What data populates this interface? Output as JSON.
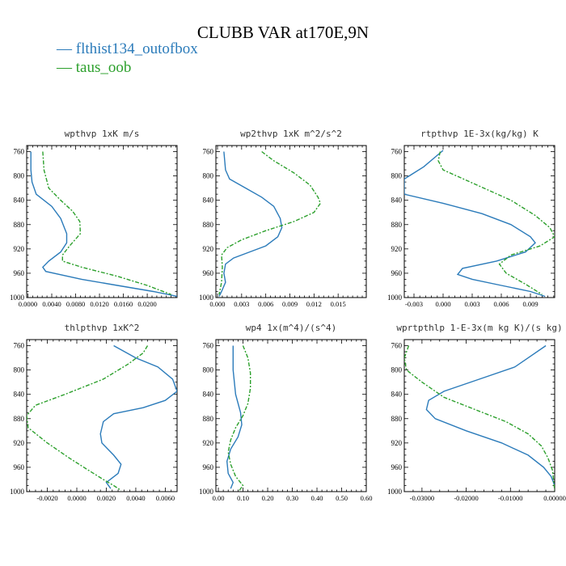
{
  "figure": {
    "title": "CLUBB VAR at170E,9N",
    "legend": [
      {
        "label": "flthist134_outofbox",
        "color": "#2b7bba"
      },
      {
        "label": "taus_oob",
        "color": "#2ca02c"
      }
    ]
  },
  "chart_data": [
    {
      "type": "line",
      "title": "wpthvp 1xK m/s",
      "xlim": [
        -0.0002,
        0.025
      ],
      "xticks": [
        0.0,
        0.004,
        0.008,
        0.012,
        0.016,
        0.02
      ],
      "xtick_labels": [
        "0.0000",
        "0.0040",
        "0.0080",
        "0.0120",
        "0.0160",
        "0.0200"
      ],
      "ylim": [
        1000,
        750
      ],
      "yticks": [
        760,
        800,
        840,
        880,
        920,
        960,
        1000
      ],
      "series": [
        {
          "name": "flthist134_outofbox",
          "points": [
            [
              0.0005,
              760
            ],
            [
              0.0005,
              790
            ],
            [
              0.0007,
              810
            ],
            [
              0.0014,
              830
            ],
            [
              0.004,
              850
            ],
            [
              0.0055,
              870
            ],
            [
              0.0065,
              895
            ],
            [
              0.0065,
              910
            ],
            [
              0.0055,
              925
            ],
            [
              0.0035,
              940
            ],
            [
              0.0025,
              950
            ],
            [
              0.003,
              957
            ],
            [
              0.009,
              970
            ],
            [
              0.015,
              980
            ],
            [
              0.021,
              990
            ],
            [
              0.025,
              998
            ]
          ]
        },
        {
          "name": "taus_oob",
          "points": [
            [
              0.0025,
              760
            ],
            [
              0.0027,
              790
            ],
            [
              0.0035,
              820
            ],
            [
              0.0055,
              840
            ],
            [
              0.0075,
              858
            ],
            [
              0.0087,
              875
            ],
            [
              0.0088,
              895
            ],
            [
              0.007,
              915
            ],
            [
              0.0058,
              930
            ],
            [
              0.0058,
              940
            ],
            [
              0.009,
              950
            ],
            [
              0.015,
              965
            ],
            [
              0.02,
              980
            ],
            [
              0.024,
              995
            ]
          ]
        }
      ]
    },
    {
      "type": "line",
      "title": "wp2thvp 1xK m^2/s^2",
      "xlim": [
        -0.0002,
        0.0185
      ],
      "xticks": [
        0.0,
        0.003,
        0.006,
        0.009,
        0.012,
        0.015
      ],
      "xtick_labels": [
        "0.000",
        "0.003",
        "0.006",
        "0.009",
        "0.012",
        "0.015"
      ],
      "ylim": [
        1000,
        750
      ],
      "yticks": [
        760,
        800,
        840,
        880,
        920,
        960,
        1000
      ],
      "series": [
        {
          "name": "flthist134_outofbox",
          "points": [
            [
              0.0008,
              760
            ],
            [
              0.001,
              790
            ],
            [
              0.0015,
              805
            ],
            [
              0.0035,
              820
            ],
            [
              0.0055,
              835
            ],
            [
              0.007,
              850
            ],
            [
              0.0078,
              870
            ],
            [
              0.008,
              885
            ],
            [
              0.0075,
              900
            ],
            [
              0.006,
              915
            ],
            [
              0.004,
              925
            ],
            [
              0.002,
              935
            ],
            [
              0.001,
              945
            ],
            [
              0.0008,
              960
            ],
            [
              0.001,
              975
            ],
            [
              0.0005,
              990
            ],
            [
              0.0002,
              998
            ]
          ]
        },
        {
          "name": "taus_oob",
          "points": [
            [
              0.0055,
              760
            ],
            [
              0.007,
              775
            ],
            [
              0.0095,
              795
            ],
            [
              0.0115,
              815
            ],
            [
              0.0125,
              835
            ],
            [
              0.0128,
              845
            ],
            [
              0.012,
              860
            ],
            [
              0.0095,
              875
            ],
            [
              0.006,
              890
            ],
            [
              0.003,
              905
            ],
            [
              0.0012,
              918
            ],
            [
              0.0005,
              930
            ],
            [
              0.0006,
              950
            ],
            [
              0.0005,
              975
            ],
            [
              0.0002,
              995
            ]
          ]
        }
      ]
    },
    {
      "type": "line",
      "title": "rtpthvp 1E-3x(kg/kg) K",
      "xlim": [
        -0.004,
        0.0115
      ],
      "xticks": [
        -0.003,
        0.0,
        0.003,
        0.006,
        0.009
      ],
      "xtick_labels": [
        "-0.003",
        "0.000",
        "0.003",
        "0.006",
        "0.009"
      ],
      "ylim": [
        1000,
        750
      ],
      "yticks": [
        760,
        800,
        840,
        880,
        920,
        960,
        1000
      ],
      "series": [
        {
          "name": "flthist134_outofbox",
          "points": [
            [
              0.0,
              758
            ],
            [
              -0.002,
              785
            ],
            [
              -0.004,
              805
            ],
            [
              -0.004,
              830
            ],
            [
              0.0,
              845
            ],
            [
              0.004,
              862
            ],
            [
              0.007,
              880
            ],
            [
              0.009,
              900
            ],
            [
              0.0095,
              910
            ],
            [
              0.0085,
              925
            ],
            [
              0.0055,
              940
            ],
            [
              0.002,
              952
            ],
            [
              0.0015,
              962
            ],
            [
              0.003,
              970
            ],
            [
              0.006,
              980
            ],
            [
              0.009,
              990
            ],
            [
              0.0105,
              998
            ]
          ]
        },
        {
          "name": "taus_oob",
          "points": [
            [
              -0.0003,
              760
            ],
            [
              -0.0005,
              775
            ],
            [
              0.0,
              790
            ],
            [
              0.0035,
              815
            ],
            [
              0.007,
              840
            ],
            [
              0.0095,
              865
            ],
            [
              0.011,
              885
            ],
            [
              0.0115,
              900
            ],
            [
              0.01,
              915
            ],
            [
              0.007,
              930
            ],
            [
              0.0058,
              945
            ],
            [
              0.0065,
              960
            ],
            [
              0.0085,
              978
            ],
            [
              0.0102,
              995
            ]
          ]
        }
      ]
    },
    {
      "type": "line",
      "title": "thlpthvp 1xK^2",
      "xlim": [
        -0.0034,
        0.0068
      ],
      "xticks": [
        -0.002,
        0.0,
        0.002,
        0.004,
        0.006
      ],
      "xtick_labels": [
        "-0.0020",
        "0.0000",
        "0.0020",
        "0.0040",
        "0.0060"
      ],
      "ylim": [
        1000,
        750
      ],
      "yticks": [
        760,
        800,
        840,
        880,
        920,
        960,
        1000
      ],
      "series": [
        {
          "name": "flthist134_outofbox",
          "points": [
            [
              0.0025,
              760
            ],
            [
              0.004,
              780
            ],
            [
              0.0055,
              795
            ],
            [
              0.0065,
              815
            ],
            [
              0.0068,
              835
            ],
            [
              0.006,
              850
            ],
            [
              0.0045,
              862
            ],
            [
              0.0025,
              872
            ],
            [
              0.0018,
              885
            ],
            [
              0.0016,
              905
            ],
            [
              0.0017,
              920
            ],
            [
              0.0025,
              940
            ],
            [
              0.003,
              955
            ],
            [
              0.0028,
              970
            ],
            [
              0.002,
              985
            ],
            [
              0.0023,
              995
            ]
          ]
        },
        {
          "name": "taus_oob",
          "points": [
            [
              0.0048,
              760
            ],
            [
              0.0045,
              772
            ],
            [
              0.0035,
              790
            ],
            [
              0.0018,
              815
            ],
            [
              -0.0008,
              840
            ],
            [
              -0.0028,
              858
            ],
            [
              -0.0034,
              875
            ],
            [
              -0.0033,
              895
            ],
            [
              -0.002,
              920
            ],
            [
              -0.0005,
              945
            ],
            [
              0.0008,
              965
            ],
            [
              0.0018,
              980
            ],
            [
              0.0025,
              990
            ],
            [
              0.003,
              998
            ]
          ]
        }
      ]
    },
    {
      "type": "line",
      "title": "wp4 1x(m^4)/(s^4)",
      "xlim": [
        -0.01,
        0.6
      ],
      "xticks": [
        0.0,
        0.1,
        0.2,
        0.3,
        0.4,
        0.5,
        0.6
      ],
      "xtick_labels": [
        "0.00",
        "0.10",
        "0.20",
        "0.30",
        "0.40",
        "0.50",
        "0.60"
      ],
      "ylim": [
        1000,
        750
      ],
      "yticks": [
        760,
        800,
        840,
        880,
        920,
        960,
        1000
      ],
      "series": [
        {
          "name": "flthist134_outofbox",
          "points": [
            [
              0.06,
              760
            ],
            [
              0.06,
              800
            ],
            [
              0.07,
              840
            ],
            [
              0.09,
              870
            ],
            [
              0.095,
              890
            ],
            [
              0.08,
              910
            ],
            [
              0.05,
              930
            ],
            [
              0.035,
              950
            ],
            [
              0.04,
              970
            ],
            [
              0.06,
              985
            ],
            [
              0.05,
              995
            ]
          ]
        },
        {
          "name": "taus_oob",
          "points": [
            [
              0.1,
              760
            ],
            [
              0.12,
              780
            ],
            [
              0.13,
              805
            ],
            [
              0.13,
              830
            ],
            [
              0.12,
              855
            ],
            [
              0.1,
              875
            ],
            [
              0.07,
              895
            ],
            [
              0.05,
              915
            ],
            [
              0.04,
              935
            ],
            [
              0.05,
              955
            ],
            [
              0.07,
              975
            ],
            [
              0.1,
              990
            ],
            [
              0.085,
              998
            ]
          ]
        }
      ]
    },
    {
      "type": "line",
      "title": "wprtpthlp 1-E-3x(m kg K)/(s kg)",
      "xlim": [
        -0.034,
        0.0
      ],
      "xticks": [
        -0.03,
        -0.02,
        -0.01,
        0.0
      ],
      "xtick_labels": [
        "-0.03000",
        "-0.02000",
        "-0.01000",
        "0.00000"
      ],
      "ylim": [
        1000,
        750
      ],
      "yticks": [
        760,
        800,
        840,
        880,
        920,
        960,
        1000
      ],
      "series": [
        {
          "name": "flthist134_outofbox",
          "points": [
            [
              -0.002,
              760
            ],
            [
              -0.006,
              780
            ],
            [
              -0.009,
              795
            ],
            [
              -0.017,
              815
            ],
            [
              -0.025,
              835
            ],
            [
              -0.0285,
              850
            ],
            [
              -0.029,
              865
            ],
            [
              -0.027,
              880
            ],
            [
              -0.02,
              900
            ],
            [
              -0.012,
              920
            ],
            [
              -0.006,
              940
            ],
            [
              -0.0025,
              960
            ],
            [
              -0.0008,
              975
            ],
            [
              0.0,
              990
            ]
          ]
        },
        {
          "name": "taus_oob",
          "points": [
            [
              -0.033,
              760
            ],
            [
              -0.034,
              780
            ],
            [
              -0.0335,
              800
            ],
            [
              -0.03,
              820
            ],
            [
              -0.025,
              845
            ],
            [
              -0.018,
              865
            ],
            [
              -0.011,
              885
            ],
            [
              -0.006,
              905
            ],
            [
              -0.003,
              925
            ],
            [
              -0.0015,
              945
            ],
            [
              -0.0005,
              965
            ],
            [
              -0.0002,
              985
            ],
            [
              0.0,
              998
            ]
          ]
        }
      ]
    }
  ]
}
